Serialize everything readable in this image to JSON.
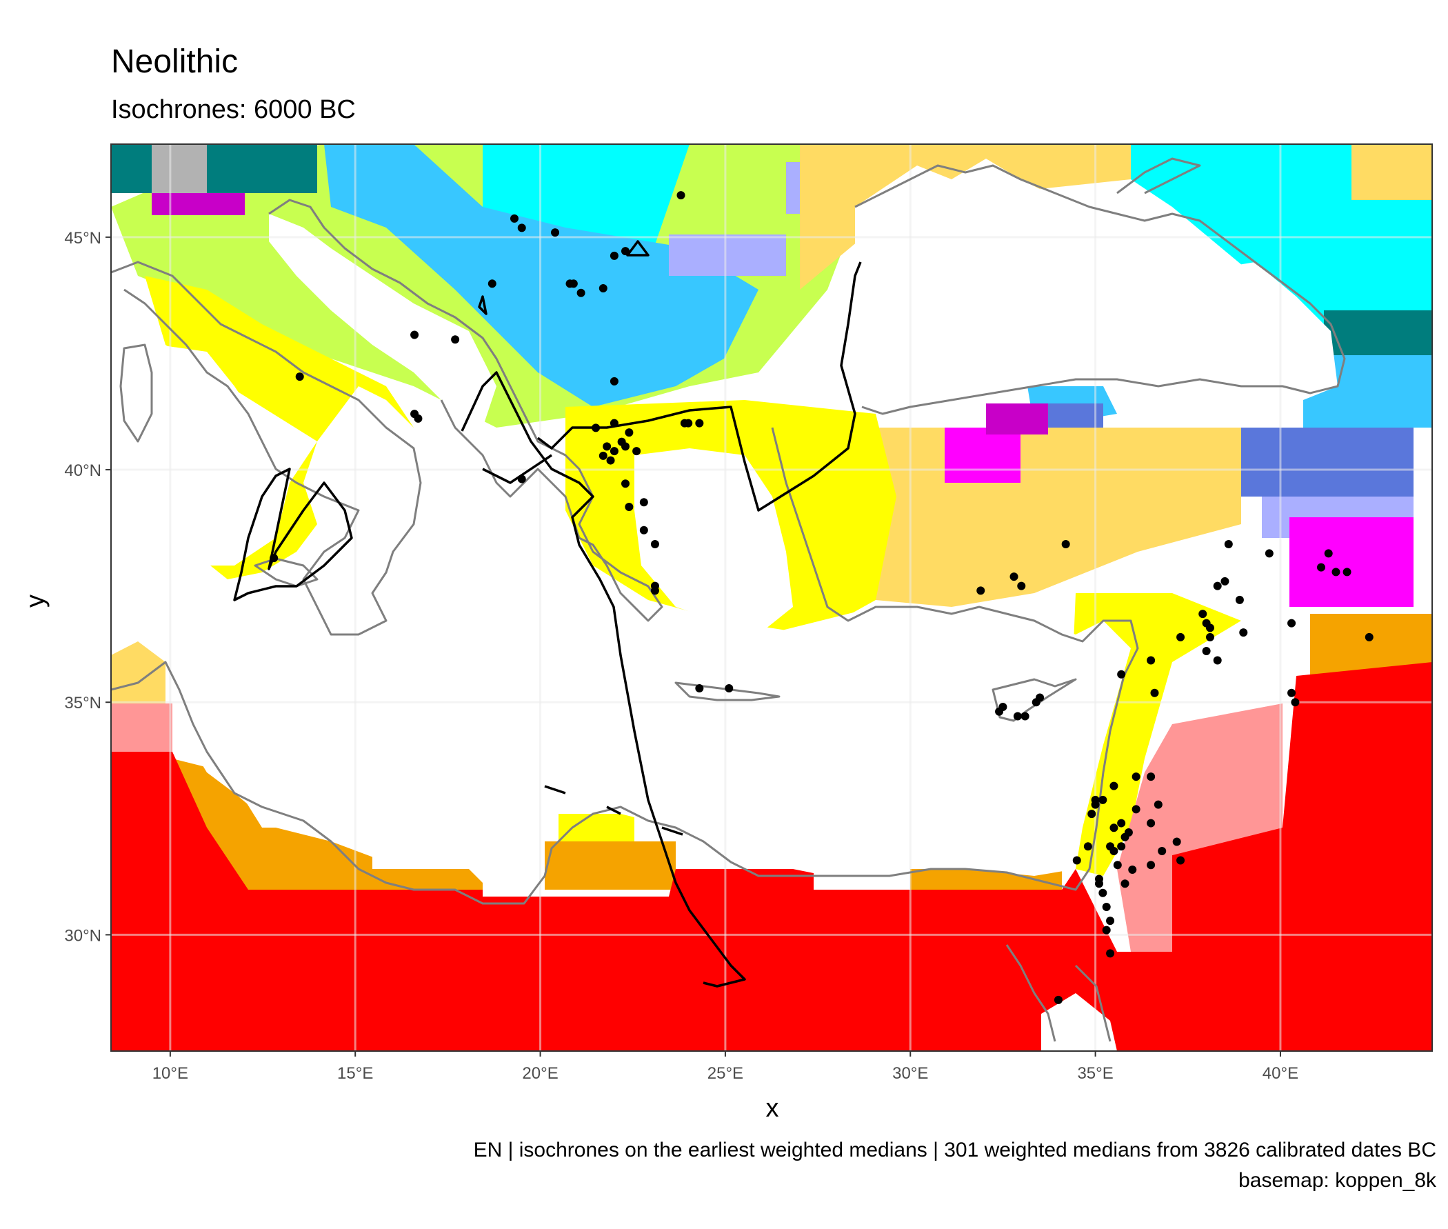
{
  "header": {
    "title": "Neolithic",
    "subtitle": "Isochrones: 6000 BC"
  },
  "axes": {
    "x_title": "x",
    "y_title": "y",
    "x_ticks": [
      "10°E",
      "15°E",
      "20°E",
      "25°E",
      "30°E",
      "35°E",
      "40°E"
    ],
    "y_ticks": [
      "45°N",
      "40°N",
      "35°N",
      "30°N"
    ]
  },
  "caption": {
    "line1": "EN | isochrones on the earliest weighted medians | 301 weighted medians from 3826 calibrated dates BC",
    "line2": "basemap: koppen_8k"
  },
  "chart_data": {
    "type": "map",
    "xlim": [
      8.4,
      44.1
    ],
    "ylim": [
      27.5,
      47.0
    ],
    "x_tick_values": [
      10,
      15,
      20,
      25,
      30,
      35,
      40
    ],
    "y_tick_values": [
      45,
      40,
      35,
      30
    ],
    "grid": true,
    "colors": {
      "hot_desert": "#ff0000",
      "hot_steppe": "#f5a300",
      "cold_desert": "#ff9696",
      "cold_steppe": "#ffdb63",
      "hot_summer_mediterranean": "#ffff00",
      "warm_summer_mediterranean": "#c6c700",
      "humid_subtropical": "#c8ff50",
      "oceanic": "#66ff33",
      "warm_summer_continental": "#00ffff",
      "hot_summer_continental": "#38c7ff",
      "dry_continental": "#c800c8",
      "dry_hot_continental": "#ff00ff",
      "dry_summer_cool_continental": "#aaafff",
      "subarctic": "#5a77db",
      "tundra_like": "#007d7d",
      "alpine": "#b2b2b2",
      "sea": "#ffffff",
      "coastline": "#7f7f7f",
      "isochrone": "#000000",
      "site": "#000000"
    },
    "sites": [
      [
        12.8,
        38.1
      ],
      [
        13.5,
        42.0
      ],
      [
        16.6,
        42.9
      ],
      [
        16.6,
        41.2
      ],
      [
        16.7,
        41.1
      ],
      [
        17.7,
        42.8
      ],
      [
        18.7,
        44.0
      ],
      [
        19.3,
        45.4
      ],
      [
        19.5,
        45.2
      ],
      [
        20.4,
        45.1
      ],
      [
        20.8,
        44.0
      ],
      [
        20.9,
        44.0
      ],
      [
        21.1,
        43.8
      ],
      [
        21.7,
        43.9
      ],
      [
        22.0,
        44.6
      ],
      [
        22.3,
        44.7
      ],
      [
        23.8,
        45.9
      ],
      [
        22.0,
        41.9
      ],
      [
        21.5,
        40.9
      ],
      [
        22.0,
        41.0
      ],
      [
        21.8,
        40.5
      ],
      [
        21.7,
        40.3
      ],
      [
        22.0,
        40.4
      ],
      [
        22.2,
        40.6
      ],
      [
        22.4,
        40.8
      ],
      [
        22.3,
        40.5
      ],
      [
        22.6,
        40.4
      ],
      [
        21.9,
        40.2
      ],
      [
        22.3,
        39.7
      ],
      [
        22.4,
        39.2
      ],
      [
        22.8,
        39.3
      ],
      [
        23.1,
        38.4
      ],
      [
        22.8,
        38.7
      ],
      [
        23.1,
        37.5
      ],
      [
        23.1,
        37.4
      ],
      [
        19.5,
        39.8
      ],
      [
        23.9,
        41.0
      ],
      [
        24.0,
        41.0
      ],
      [
        24.3,
        41.0
      ],
      [
        24.3,
        35.3
      ],
      [
        25.1,
        35.3
      ],
      [
        31.9,
        37.4
      ],
      [
        32.8,
        37.7
      ],
      [
        33.0,
        37.5
      ],
      [
        34.2,
        38.4
      ],
      [
        32.4,
        34.8
      ],
      [
        32.5,
        34.9
      ],
      [
        32.9,
        34.7
      ],
      [
        33.1,
        34.7
      ],
      [
        33.4,
        35.0
      ],
      [
        33.5,
        35.1
      ],
      [
        34.0,
        28.6
      ],
      [
        35.7,
        35.6
      ],
      [
        36.5,
        35.9
      ],
      [
        36.6,
        35.2
      ],
      [
        37.3,
        36.4
      ],
      [
        37.9,
        36.9
      ],
      [
        38.0,
        36.7
      ],
      [
        38.0,
        36.1
      ],
      [
        38.1,
        36.6
      ],
      [
        38.1,
        36.4
      ],
      [
        38.3,
        35.9
      ],
      [
        38.3,
        37.5
      ],
      [
        38.5,
        37.6
      ],
      [
        38.6,
        38.4
      ],
      [
        38.9,
        37.2
      ],
      [
        39.0,
        36.5
      ],
      [
        39.7,
        38.2
      ],
      [
        40.3,
        36.7
      ],
      [
        40.3,
        35.2
      ],
      [
        40.4,
        35.0
      ],
      [
        41.1,
        37.9
      ],
      [
        41.3,
        38.2
      ],
      [
        41.5,
        37.8
      ],
      [
        41.8,
        37.8
      ],
      [
        42.4,
        36.4
      ],
      [
        34.5,
        31.6
      ],
      [
        34.8,
        31.9
      ],
      [
        34.9,
        32.6
      ],
      [
        35.0,
        32.8
      ],
      [
        35.0,
        32.9
      ],
      [
        35.1,
        31.2
      ],
      [
        35.1,
        31.1
      ],
      [
        35.2,
        30.9
      ],
      [
        35.3,
        30.6
      ],
      [
        35.4,
        31.9
      ],
      [
        35.4,
        30.3
      ],
      [
        35.5,
        32.3
      ],
      [
        35.5,
        31.8
      ],
      [
        35.6,
        31.5
      ],
      [
        35.7,
        32.4
      ],
      [
        35.7,
        31.9
      ],
      [
        35.8,
        32.1
      ],
      [
        35.8,
        31.1
      ],
      [
        35.9,
        32.2
      ],
      [
        36.0,
        31.4
      ],
      [
        36.1,
        33.4
      ],
      [
        36.1,
        32.7
      ],
      [
        36.5,
        33.4
      ],
      [
        36.5,
        32.4
      ],
      [
        36.5,
        31.5
      ],
      [
        36.7,
        32.8
      ],
      [
        36.8,
        31.8
      ],
      [
        37.2,
        32.0
      ],
      [
        37.3,
        31.6
      ],
      [
        35.5,
        33.2
      ],
      [
        35.2,
        32.9
      ],
      [
        35.4,
        29.6
      ],
      [
        35.3,
        30.1
      ]
    ]
  }
}
